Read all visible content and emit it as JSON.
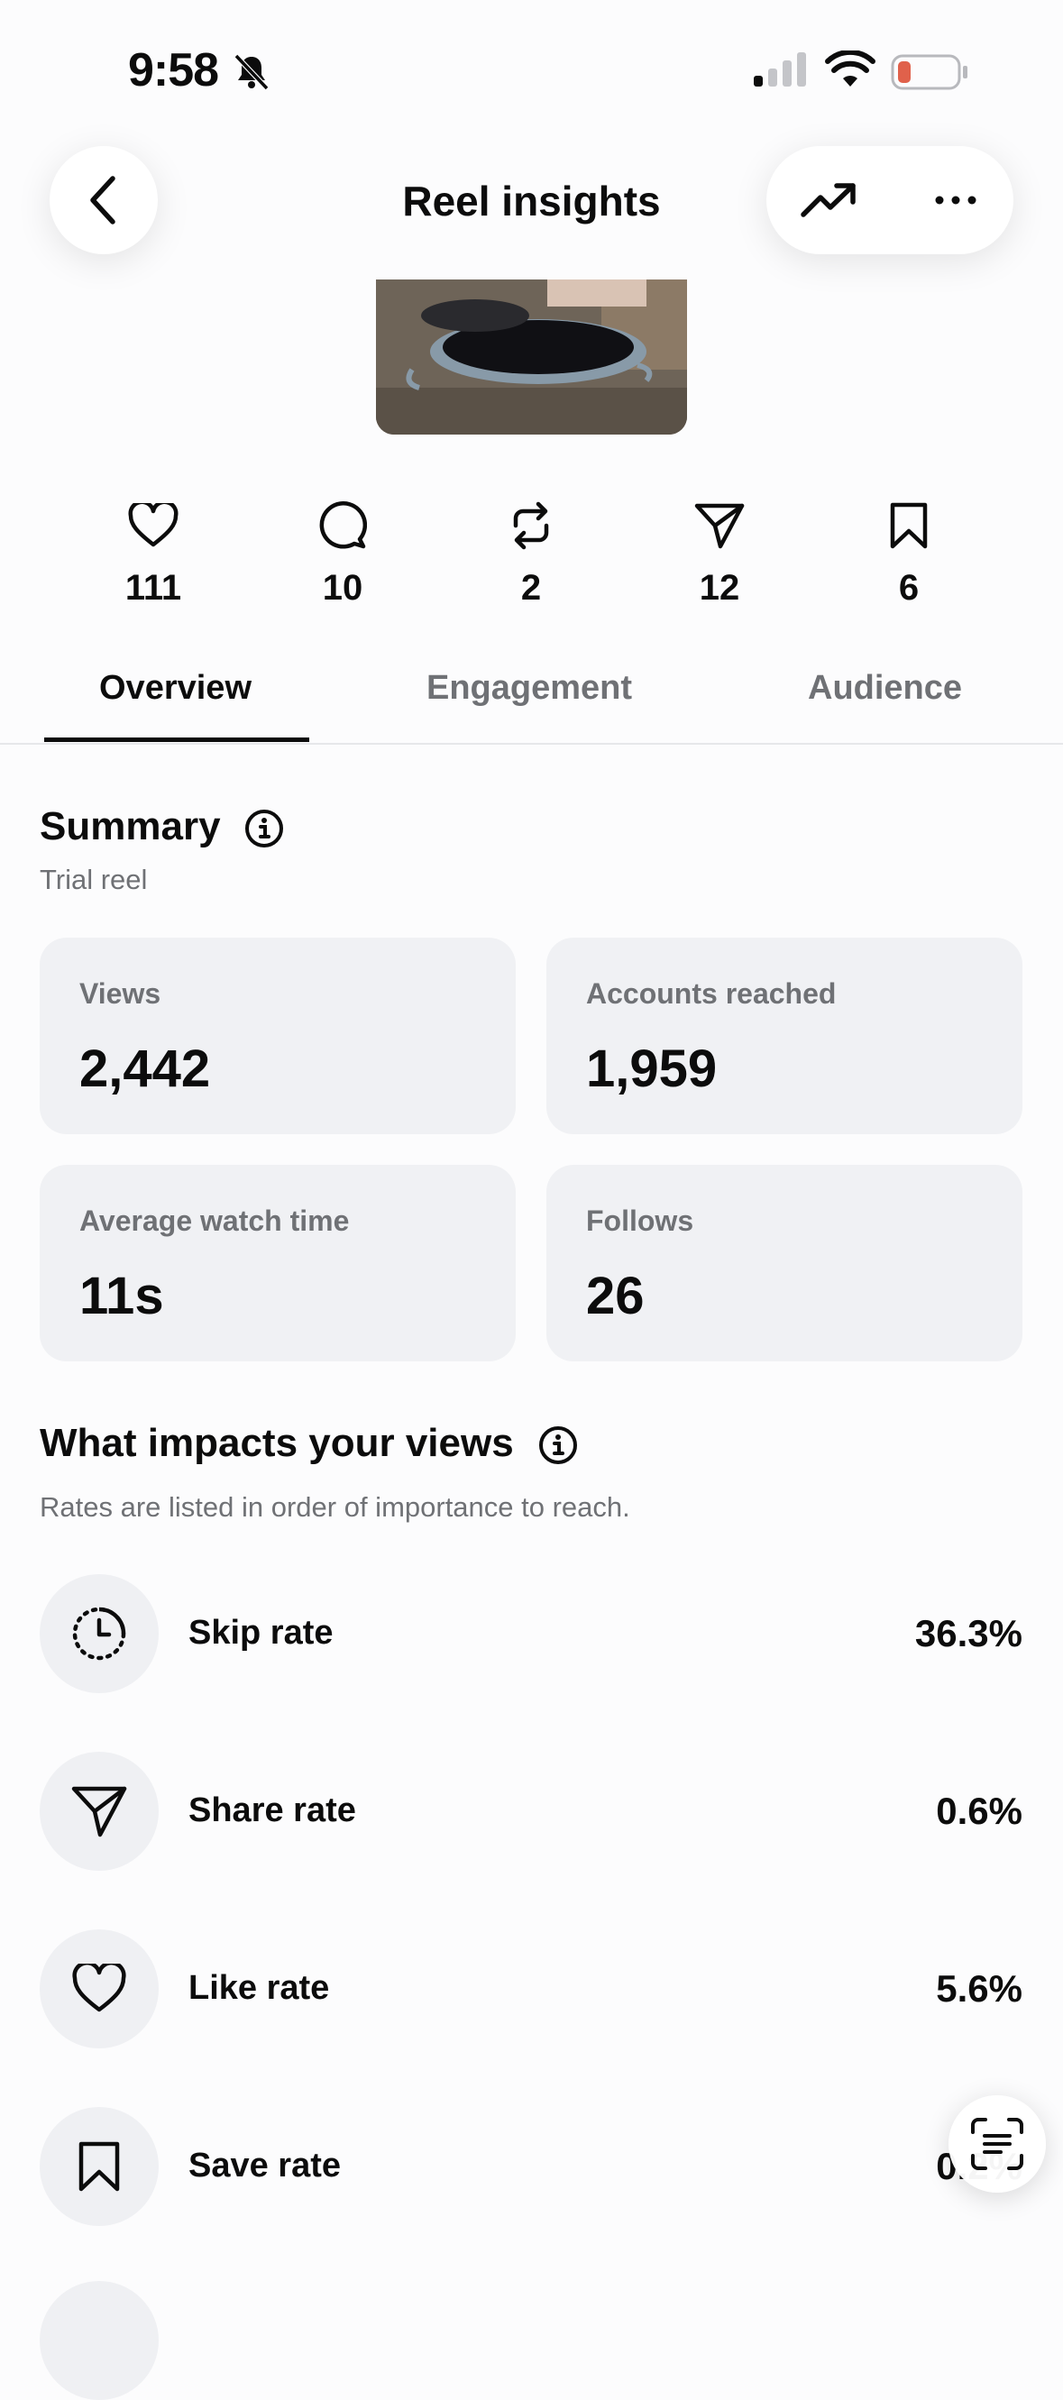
{
  "status_bar": {
    "time": "9:58"
  },
  "header": {
    "title": "Reel insights"
  },
  "stats": [
    {
      "icon": "heart-icon",
      "value": "111"
    },
    {
      "icon": "comment-icon",
      "value": "10"
    },
    {
      "icon": "repost-icon",
      "value": "2"
    },
    {
      "icon": "share-icon",
      "value": "12"
    },
    {
      "icon": "bookmark-icon",
      "value": "6"
    }
  ],
  "tabs": [
    {
      "label": "Overview",
      "active": true
    },
    {
      "label": "Engagement",
      "active": false
    },
    {
      "label": "Audience",
      "active": false
    }
  ],
  "summary": {
    "title": "Summary",
    "subtitle": "Trial reel",
    "cards": [
      {
        "label": "Views",
        "value": "2,442"
      },
      {
        "label": "Accounts reached",
        "value": "1,959"
      },
      {
        "label": "Average watch time",
        "value": "11s"
      },
      {
        "label": "Follows",
        "value": "26"
      }
    ]
  },
  "impacts": {
    "title": "What impacts your views",
    "subtitle": "Rates are listed in order of importance to reach.",
    "rates": [
      {
        "icon": "timer-icon",
        "label": "Skip rate",
        "value": "36.3%"
      },
      {
        "icon": "send-icon",
        "label": "Share rate",
        "value": "0.6%"
      },
      {
        "icon": "heart-icon",
        "label": "Like rate",
        "value": "5.6%"
      },
      {
        "icon": "bookmark-icon",
        "label": "Save rate",
        "value": "0.2%"
      }
    ]
  },
  "colors": {
    "card_bg": "#f0f1f4",
    "muted_text": "#6f7175",
    "accent_text": "#0c0c0c"
  }
}
